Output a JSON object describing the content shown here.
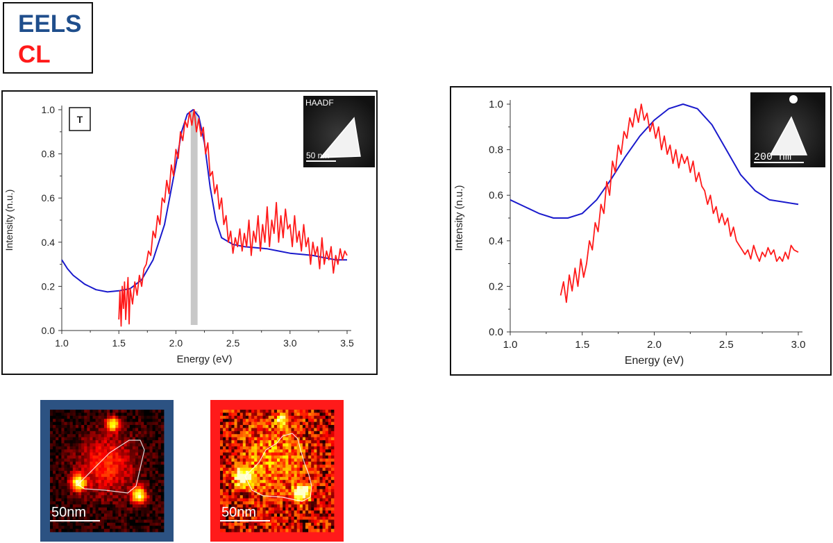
{
  "legend": {
    "eels_label": "EELS",
    "cl_label": "CL",
    "eels_color": "#1f4e8c",
    "cl_color": "#ff1a1a"
  },
  "colors": {
    "eels_line": "#1a1acc",
    "cl_line": "#ff1a1a",
    "highlight_band": "#c8c8c8",
    "eels_map_frame": "#2c5282",
    "cl_map_frame": "#ff1a1a"
  },
  "chart_data": [
    {
      "type": "line",
      "xlabel": "Energy (eV)",
      "ylabel": "Intensity (n.u.)",
      "xlim": [
        1.0,
        3.5
      ],
      "ylim": [
        0.0,
        1.0
      ],
      "xticks": [
        "1.0",
        "1.5",
        "2.0",
        "2.5",
        "3.0",
        "3.5"
      ],
      "yticks": [
        "0.0",
        "0.2",
        "0.4",
        "0.6",
        "0.8",
        "1.0"
      ],
      "highlight_band": [
        2.13,
        2.19
      ],
      "annotation": "T",
      "inset": {
        "label": "HAADF",
        "scalebar": "50 nm"
      },
      "series": [
        {
          "name": "EELS",
          "x": [
            1.0,
            1.05,
            1.1,
            1.2,
            1.3,
            1.4,
            1.5,
            1.6,
            1.7,
            1.8,
            1.9,
            2.0,
            2.05,
            2.1,
            2.15,
            2.2,
            2.25,
            2.3,
            2.35,
            2.4,
            2.5,
            2.6,
            2.7,
            2.8,
            2.9,
            3.0,
            3.1,
            3.2,
            3.3,
            3.4,
            3.5
          ],
          "values": [
            0.32,
            0.28,
            0.25,
            0.21,
            0.185,
            0.175,
            0.18,
            0.19,
            0.23,
            0.32,
            0.48,
            0.75,
            0.9,
            0.98,
            1.0,
            0.97,
            0.85,
            0.65,
            0.5,
            0.42,
            0.39,
            0.38,
            0.375,
            0.37,
            0.36,
            0.35,
            0.345,
            0.34,
            0.33,
            0.32,
            0.32
          ]
        },
        {
          "name": "CL",
          "x": [
            1.5,
            1.51,
            1.52,
            1.53,
            1.54,
            1.55,
            1.56,
            1.57,
            1.58,
            1.59,
            1.6,
            1.62,
            1.64,
            1.66,
            1.68,
            1.7,
            1.72,
            1.74,
            1.76,
            1.78,
            1.8,
            1.82,
            1.84,
            1.86,
            1.88,
            1.9,
            1.92,
            1.94,
            1.96,
            1.98,
            2.0,
            2.02,
            2.04,
            2.06,
            2.08,
            2.1,
            2.12,
            2.14,
            2.16,
            2.18,
            2.2,
            2.22,
            2.24,
            2.26,
            2.28,
            2.3,
            2.32,
            2.34,
            2.36,
            2.38,
            2.4,
            2.42,
            2.44,
            2.46,
            2.48,
            2.5,
            2.52,
            2.54,
            2.56,
            2.58,
            2.6,
            2.62,
            2.64,
            2.66,
            2.68,
            2.7,
            2.72,
            2.74,
            2.76,
            2.78,
            2.8,
            2.82,
            2.84,
            2.86,
            2.88,
            2.9,
            2.92,
            2.94,
            2.96,
            2.98,
            3.0,
            3.02,
            3.04,
            3.06,
            3.08,
            3.1,
            3.12,
            3.14,
            3.16,
            3.18,
            3.2,
            3.22,
            3.24,
            3.26,
            3.28,
            3.3,
            3.32,
            3.34,
            3.36,
            3.38,
            3.4,
            3.42,
            3.44,
            3.46,
            3.48,
            3.5
          ],
          "values": [
            0.05,
            0.18,
            0.02,
            0.2,
            0.1,
            0.22,
            0.05,
            0.15,
            0.24,
            0.03,
            0.19,
            0.12,
            0.22,
            0.16,
            0.25,
            0.2,
            0.28,
            0.3,
            0.36,
            0.34,
            0.45,
            0.42,
            0.52,
            0.48,
            0.6,
            0.58,
            0.68,
            0.62,
            0.75,
            0.7,
            0.82,
            0.78,
            0.9,
            0.86,
            0.95,
            0.92,
            0.99,
            0.93,
            1.0,
            0.9,
            0.96,
            0.88,
            0.92,
            0.8,
            0.85,
            0.7,
            0.72,
            0.62,
            0.66,
            0.55,
            0.6,
            0.48,
            0.52,
            0.4,
            0.45,
            0.35,
            0.42,
            0.38,
            0.46,
            0.36,
            0.44,
            0.38,
            0.5,
            0.34,
            0.45,
            0.4,
            0.52,
            0.36,
            0.48,
            0.4,
            0.56,
            0.38,
            0.5,
            0.44,
            0.58,
            0.4,
            0.52,
            0.42,
            0.55,
            0.46,
            0.48,
            0.38,
            0.52,
            0.4,
            0.45,
            0.36,
            0.48,
            0.38,
            0.42,
            0.3,
            0.4,
            0.34,
            0.38,
            0.28,
            0.42,
            0.3,
            0.36,
            0.32,
            0.38,
            0.26,
            0.34,
            0.3,
            0.37,
            0.32,
            0.36,
            0.34
          ]
        }
      ]
    },
    {
      "type": "line",
      "xlabel": "Energy (eV)",
      "ylabel": "Intensity (n.u.)",
      "xlim": [
        1.0,
        3.0
      ],
      "ylim": [
        0.0,
        1.0
      ],
      "xticks": [
        "1.0",
        "1.5",
        "2.0",
        "2.5",
        "3.0"
      ],
      "yticks": [
        "0.0",
        "0.2",
        "0.4",
        "0.6",
        "0.8",
        "1.0"
      ],
      "inset": {
        "scalebar": "200 nm"
      },
      "series": [
        {
          "name": "EELS",
          "x": [
            1.0,
            1.1,
            1.2,
            1.3,
            1.4,
            1.5,
            1.6,
            1.7,
            1.8,
            1.9,
            2.0,
            2.1,
            2.2,
            2.3,
            2.4,
            2.5,
            2.6,
            2.7,
            2.8,
            2.9,
            3.0
          ],
          "values": [
            0.58,
            0.55,
            0.52,
            0.5,
            0.5,
            0.52,
            0.58,
            0.67,
            0.77,
            0.86,
            0.93,
            0.98,
            1.0,
            0.98,
            0.91,
            0.8,
            0.69,
            0.62,
            0.58,
            0.57,
            0.56
          ]
        },
        {
          "name": "CL",
          "x": [
            1.35,
            1.37,
            1.39,
            1.41,
            1.43,
            1.45,
            1.47,
            1.49,
            1.51,
            1.53,
            1.55,
            1.57,
            1.59,
            1.61,
            1.63,
            1.65,
            1.67,
            1.69,
            1.71,
            1.73,
            1.75,
            1.77,
            1.79,
            1.81,
            1.83,
            1.85,
            1.87,
            1.89,
            1.91,
            1.93,
            1.95,
            1.97,
            1.99,
            2.01,
            2.03,
            2.05,
            2.07,
            2.09,
            2.11,
            2.13,
            2.15,
            2.17,
            2.19,
            2.21,
            2.23,
            2.25,
            2.27,
            2.29,
            2.31,
            2.33,
            2.35,
            2.37,
            2.39,
            2.41,
            2.43,
            2.45,
            2.47,
            2.49,
            2.51,
            2.53,
            2.55,
            2.57,
            2.59,
            2.61,
            2.63,
            2.65,
            2.67,
            2.69,
            2.71,
            2.73,
            2.75,
            2.77,
            2.79,
            2.81,
            2.83,
            2.85,
            2.87,
            2.89,
            2.91,
            2.93,
            2.95,
            2.97,
            3.0
          ],
          "values": [
            0.16,
            0.22,
            0.13,
            0.25,
            0.18,
            0.28,
            0.2,
            0.32,
            0.24,
            0.3,
            0.4,
            0.36,
            0.48,
            0.44,
            0.56,
            0.52,
            0.66,
            0.6,
            0.75,
            0.7,
            0.82,
            0.78,
            0.88,
            0.85,
            0.94,
            0.9,
            0.98,
            0.92,
            1.0,
            0.93,
            0.96,
            0.88,
            0.92,
            0.85,
            0.9,
            0.8,
            0.86,
            0.78,
            0.82,
            0.74,
            0.8,
            0.72,
            0.78,
            0.74,
            0.77,
            0.7,
            0.75,
            0.66,
            0.7,
            0.64,
            0.62,
            0.56,
            0.6,
            0.52,
            0.55,
            0.48,
            0.52,
            0.47,
            0.5,
            0.42,
            0.46,
            0.4,
            0.38,
            0.36,
            0.34,
            0.36,
            0.32,
            0.38,
            0.34,
            0.31,
            0.35,
            0.33,
            0.37,
            0.34,
            0.36,
            0.31,
            0.33,
            0.31,
            0.35,
            0.32,
            0.38,
            0.36,
            0.35
          ]
        }
      ]
    }
  ],
  "maps": [
    {
      "kind": "EELS",
      "scalebar": "50nm"
    },
    {
      "kind": "CL",
      "scalebar": "50nm"
    }
  ]
}
